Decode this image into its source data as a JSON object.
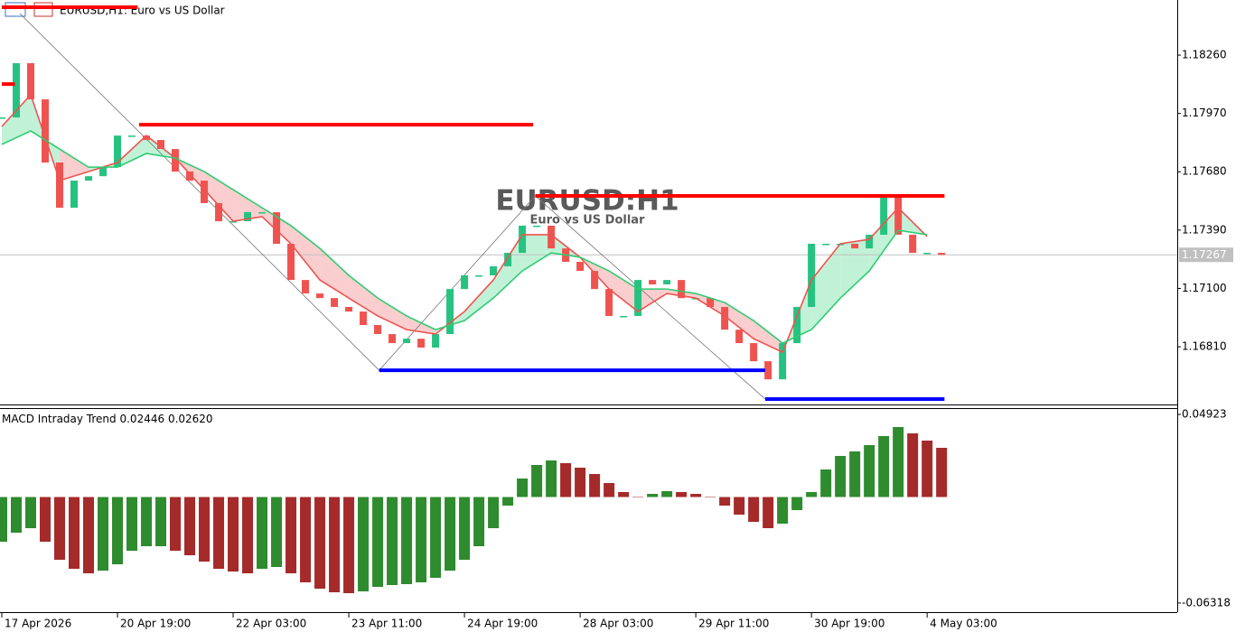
{
  "chart_data": [
    {
      "type": "line",
      "title": "EURUSD,H1: Euro vs US Dollar",
      "watermark": "EURUSD:H1",
      "watermark_subtitle": "Euro vs US Dollar",
      "xlim": [
        0,
        81.3
      ],
      "ylim": [
        1.16523,
        1.18534
      ],
      "yticks": [
        {
          "value": 1.1826,
          "label": "1.18260"
        },
        {
          "value": 1.1797,
          "label": "1.17970"
        },
        {
          "value": 1.1768,
          "label": "1.17680"
        },
        {
          "value": 1.1739,
          "label": "1.17390"
        },
        {
          "value": 1.171,
          "label": "1.17100"
        },
        {
          "value": 1.1681,
          "label": "1.16810"
        }
      ],
      "current_price": {
        "value": 1.17267,
        "label": "1.17267"
      },
      "series": [
        {
          "color": "#26c281",
          "down_color": "#ef5350",
          "x": [
            0,
            1,
            2,
            3,
            4,
            5,
            6,
            7,
            8,
            9,
            10,
            11,
            12,
            13,
            14,
            15,
            16,
            17,
            18,
            19,
            20,
            21,
            22,
            23,
            24,
            25,
            26,
            27,
            28,
            29,
            30,
            31,
            32,
            33,
            34,
            35,
            36,
            37,
            38,
            39,
            40,
            41,
            42,
            43,
            44,
            45,
            46,
            47,
            48,
            49,
            50,
            51,
            52,
            53,
            54,
            55,
            56,
            57,
            58,
            59,
            60,
            61,
            62,
            63,
            64,
            65
          ],
          "values": [
            1.1795,
            1.1822,
            1.1804,
            1.17726,
            1.17501,
            1.17636,
            1.17658,
            1.17703,
            1.1786,
            1.1786,
            1.17838,
            1.17793,
            1.17681,
            1.17636,
            1.17524,
            1.17434,
            1.17434,
            1.17479,
            1.17479,
            1.17322,
            1.17142,
            1.17075,
            1.17052,
            1.17008,
            1.16985,
            1.16918,
            1.16873,
            1.16828,
            1.1685,
            1.16806,
            1.16873,
            1.17097,
            1.17165,
            1.17165,
            1.1721,
            1.17277,
            1.17412,
            1.17412,
            1.17299,
            1.17232,
            1.17187,
            1.17097,
            1.16963,
            1.16963,
            1.17142,
            1.1712,
            1.17142,
            1.17052,
            1.17052,
            1.17008,
            1.16895,
            1.16828,
            1.16738,
            1.16648,
            1.16828,
            1.17008,
            1.17322,
            1.17322,
            1.17322,
            1.17299,
            1.17367,
            1.17569,
            1.17367,
            1.17277,
            1.17277,
            1.17267
          ]
        },
        {
          "color": "#ef5350",
          "x": [
            0,
            2,
            4,
            6,
            8,
            10,
            12,
            14,
            16,
            18,
            20,
            22,
            24,
            26,
            28,
            30,
            32,
            34,
            36,
            38,
            40,
            42,
            44,
            46,
            48,
            50,
            52,
            54,
            56,
            58,
            60,
            62,
            64
          ],
          "values": [
            1.17905,
            1.18063,
            1.17636,
            1.17681,
            1.17726,
            1.1786,
            1.17748,
            1.17591,
            1.17434,
            1.17457,
            1.17322,
            1.17142,
            1.17052,
            1.16963,
            1.16895,
            1.16873,
            1.16985,
            1.17142,
            1.17367,
            1.17367,
            1.17255,
            1.17097,
            1.16985,
            1.17075,
            1.17052,
            1.16963,
            1.1685,
            1.16783,
            1.17142,
            1.17322,
            1.17344,
            1.17501,
            1.17358
          ]
        },
        {
          "color": "#2ecc71",
          "x": [
            0,
            2,
            4,
            6,
            8,
            10,
            12,
            14,
            16,
            18,
            20,
            22,
            24,
            26,
            28,
            30,
            32,
            34,
            36,
            38,
            40,
            42,
            44,
            46,
            48,
            50,
            52,
            54,
            56,
            58,
            60,
            62,
            64
          ],
          "values": [
            1.17816,
            1.17883,
            1.17793,
            1.17703,
            1.17703,
            1.17771,
            1.17748,
            1.17681,
            1.17591,
            1.17501,
            1.17412,
            1.17299,
            1.17165,
            1.17052,
            1.16963,
            1.16895,
            1.1694,
            1.17052,
            1.17187,
            1.17277,
            1.17255,
            1.17187,
            1.17097,
            1.17097,
            1.17075,
            1.1703,
            1.1694,
            1.16828,
            1.16895,
            1.17052,
            1.17187,
            1.17389,
            1.17367
          ]
        }
      ],
      "levels": [
        {
          "value": 1.18498,
          "x": [
            0,
            9.4
          ],
          "color": "#ff0000"
        },
        {
          "value": 1.18116,
          "x": [
            0,
            0.9
          ],
          "color": "#ff0000"
        },
        {
          "value": 1.17914,
          "x": [
            9.5,
            36.75
          ],
          "color": "#ff0000"
        },
        {
          "value": 1.1756,
          "x": [
            36.9,
            65.2
          ],
          "color": "#ff0000"
        },
        {
          "value": 1.16693,
          "x": [
            26.1,
            52.8
          ],
          "color": "#0000ff"
        },
        {
          "value": 1.1655,
          "x": [
            52.8,
            65.2
          ],
          "color": "#0000ff"
        }
      ],
      "zigzag": {
        "x": [
          1.25,
          26.1,
          36.9,
          52.8
        ],
        "values": [
          1.18467,
          1.16693,
          1.1756,
          1.1655
        ]
      }
    },
    {
      "type": "bar",
      "title": "MACD Intraday Trend",
      "indicator_values": [
        {
          "value": 0.02446,
          "label": "0.02446"
        },
        {
          "value": 0.0262,
          "label": "0.02620"
        }
      ],
      "xlim": [
        0,
        81.3
      ],
      "ylim": [
        -0.0686,
        0.05246
      ],
      "yticks": [
        0.04923,
        -0.06318
      ],
      "xticks": [
        {
          "value": 0,
          "label": "17 Apr 2026"
        },
        {
          "value": 8,
          "label": "20 Apr 19:00"
        },
        {
          "value": 16,
          "label": "22 Apr 03:00"
        },
        {
          "value": 24,
          "label": "23 Apr 11:00"
        },
        {
          "value": 32,
          "label": "24 Apr 19:00"
        },
        {
          "value": 40,
          "label": "28 Apr 03:00"
        },
        {
          "value": 48,
          "label": "29 Apr 11:00"
        },
        {
          "value": 56,
          "label": "30 Apr 19:00"
        },
        {
          "value": 64,
          "label": "4 May 03:00"
        }
      ],
      "color": "#2e8b2e",
      "down_color": "#a52a2a",
      "x": [
        0,
        1,
        2,
        3,
        4,
        5,
        6,
        7,
        8,
        9,
        10,
        11,
        12,
        13,
        14,
        15,
        16,
        17,
        18,
        19,
        20,
        21,
        22,
        23,
        24,
        25,
        26,
        27,
        28,
        29,
        30,
        31,
        32,
        33,
        34,
        35,
        36,
        37,
        38,
        39,
        40,
        41,
        42,
        43,
        44,
        45,
        46,
        47,
        48,
        49,
        50,
        51,
        52,
        53,
        54,
        55,
        56,
        57,
        58,
        59,
        60,
        61,
        62,
        63,
        64,
        65
      ],
      "values": [
        -0.02663,
        -0.02125,
        -0.01856,
        -0.02663,
        -0.03739,
        -0.04277,
        -0.04546,
        -0.04385,
        -0.04008,
        -0.03201,
        -0.02932,
        -0.02932,
        -0.03201,
        -0.0347,
        -0.03847,
        -0.04277,
        -0.04439,
        -0.04546,
        -0.04277,
        -0.0417,
        -0.04546,
        -0.05084,
        -0.05461,
        -0.05676,
        -0.0573,
        -0.05622,
        -0.05353,
        -0.05246,
        -0.05192,
        -0.05084,
        -0.04815,
        -0.04385,
        -0.03739,
        -0.02932,
        -0.01856,
        -0.00511,
        0.01103,
        0.0191,
        0.02179,
        0.02018,
        0.01749,
        0.01372,
        0.00834,
        0.00296,
        0.00027,
        0.00188,
        0.0035,
        0.00296,
        0.00188,
        -0.00027,
        -0.00511,
        -0.01049,
        -0.0148,
        -0.01856,
        -0.01587,
        -0.0078,
        0.00296,
        0.01641,
        0.02448,
        0.02717,
        0.03094,
        0.03632,
        0.0417,
        0.03793,
        0.03363,
        0.02932
      ]
    }
  ]
}
